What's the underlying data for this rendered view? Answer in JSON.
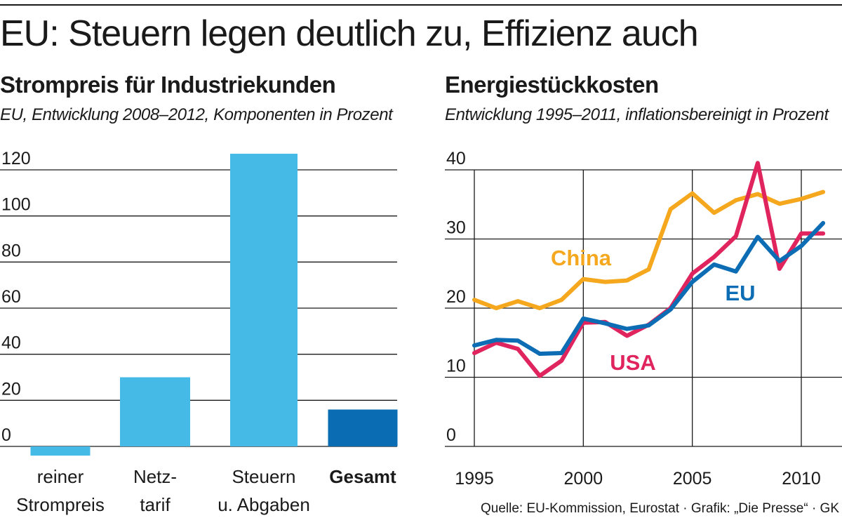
{
  "header": {
    "title": "EU: Steuern legen deutlich zu, Effizienz auch"
  },
  "source": "Quelle: EU-Kommission, Eurostat  · Grafik: „Die Presse“ · GK",
  "colors": {
    "bar_light": "#45bae6",
    "bar_dark": "#0a6db3",
    "china": "#f5a71e",
    "usa": "#e0245e",
    "eu": "#0d6db4",
    "grid": "#1a1a1a"
  },
  "chart_data": [
    {
      "type": "bar",
      "title": "Strompreis für Industriekunden",
      "subtitle": "EU, Entwicklung 2008–2012, Komponenten in Prozent",
      "categories": [
        [
          "reiner",
          "Strompreis"
        ],
        [
          "Netz-",
          "tarif"
        ],
        [
          "Steuern",
          "u. Abgaben"
        ],
        [
          "Gesamt"
        ]
      ],
      "bold_categories": [
        false,
        false,
        false,
        true
      ],
      "values": [
        -4,
        30,
        127,
        16
      ],
      "bar_colors": [
        "#45bae6",
        "#45bae6",
        "#45bae6",
        "#0a6db3"
      ],
      "ylim": [
        -5,
        130
      ],
      "yticks": [
        0,
        20,
        40,
        60,
        80,
        100,
        120
      ],
      "grid": true
    },
    {
      "type": "line",
      "title": "Energiestückkosten",
      "subtitle": "Entwicklung 1995–2011, inflationsbereinigt in Prozent",
      "x": [
        1995,
        1996,
        1997,
        1998,
        1999,
        2000,
        2001,
        2002,
        2003,
        2004,
        2005,
        2006,
        2007,
        2008,
        2009,
        2010,
        2011
      ],
      "xticks": [
        1995,
        2000,
        2005,
        2010
      ],
      "yticks": [
        0,
        10,
        20,
        30,
        40
      ],
      "ylim": [
        0,
        40
      ],
      "xlim": [
        1995,
        2011
      ],
      "grid": true,
      "series": [
        {
          "name": "China",
          "color": "#f5a71e",
          "values": [
            21.2,
            20.0,
            21.0,
            20.0,
            21.2,
            24.2,
            23.8,
            24.0,
            25.6,
            34.3,
            36.6,
            33.8,
            35.6,
            36.5,
            35.1,
            35.8,
            36.8
          ]
        },
        {
          "name": "USA",
          "color": "#e0245e",
          "values": [
            13.5,
            15.0,
            14.1,
            10.2,
            12.4,
            17.9,
            18.0,
            16.0,
            17.6,
            20.0,
            25.0,
            27.4,
            30.4,
            41.0,
            25.7,
            30.8,
            30.8
          ]
        },
        {
          "name": "EU",
          "color": "#0d6db4",
          "values": [
            14.6,
            15.4,
            15.3,
            13.4,
            13.5,
            18.5,
            17.8,
            17.0,
            17.5,
            19.8,
            23.8,
            26.3,
            25.3,
            30.3,
            26.8,
            29.0,
            32.3
          ]
        }
      ]
    }
  ]
}
